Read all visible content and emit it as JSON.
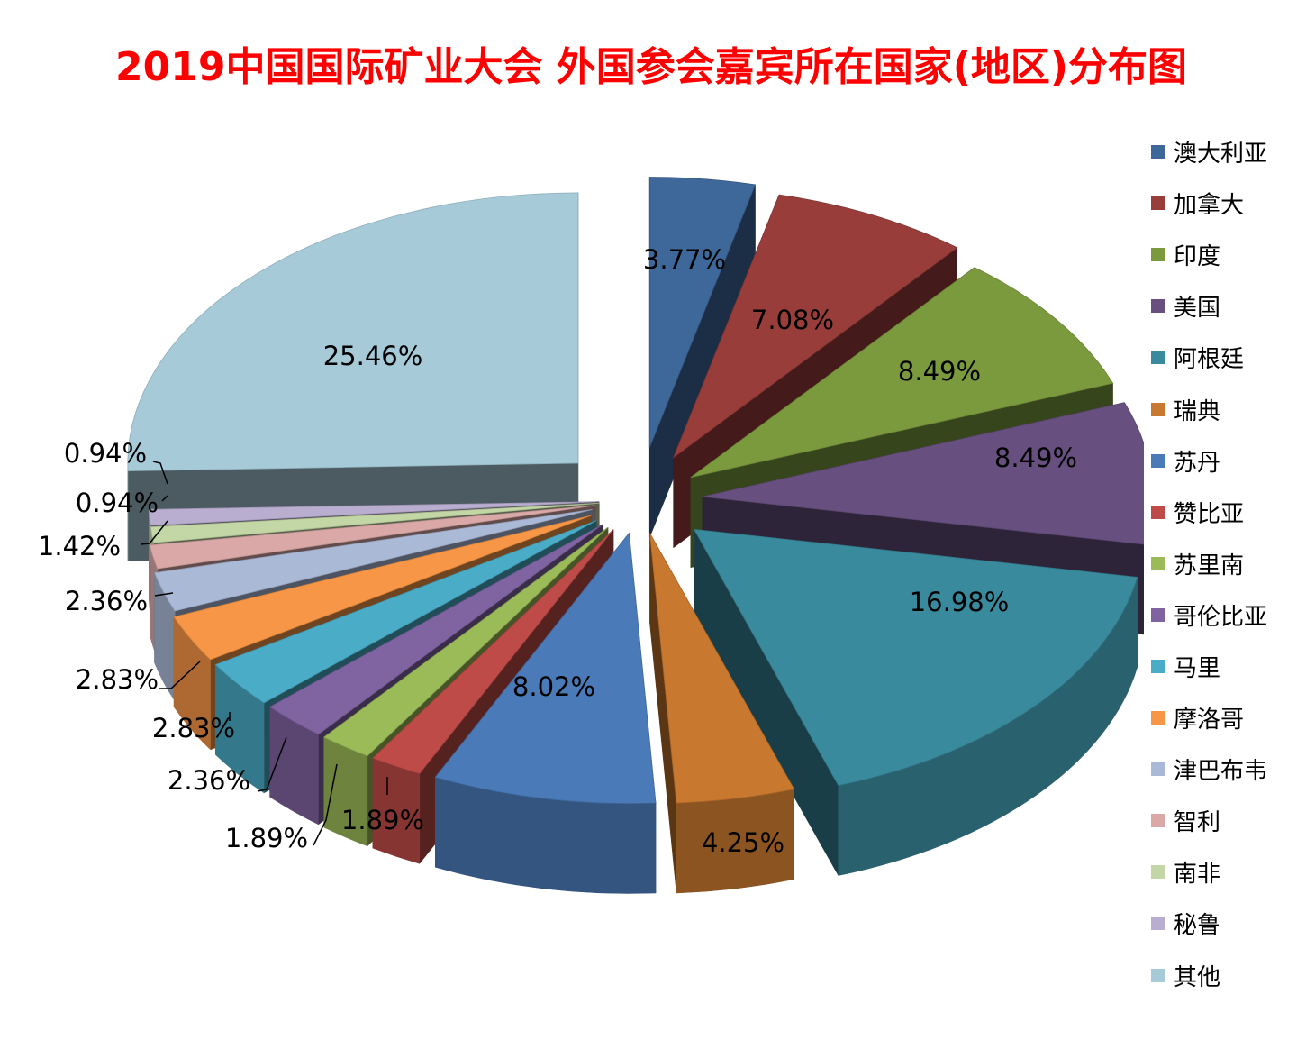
{
  "chart_data": {
    "type": "pie",
    "title": "2019中国国际矿业大会 外国参会嘉宾所在国家(地区)分布图",
    "legend_position": "right",
    "exploded": true,
    "three_d": true,
    "slices": [
      {
        "name": "澳大利亚",
        "value": 3.77,
        "label": "3.77%",
        "color": "#3e679a"
      },
      {
        "name": "加拿大",
        "value": 7.08,
        "label": "7.08%",
        "color": "#983d3a"
      },
      {
        "name": "印度",
        "value": 8.49,
        "label": "8.49%",
        "color": "#7b9a3e"
      },
      {
        "name": "美国",
        "value": 8.49,
        "label": "8.49%",
        "color": "#67507f"
      },
      {
        "name": "阿根廷",
        "value": 16.98,
        "label": "16.98%",
        "color": "#3a8a9e"
      },
      {
        "name": "瑞典",
        "value": 4.25,
        "label": "4.25%",
        "color": "#c8782f"
      },
      {
        "name": "苏丹",
        "value": 8.02,
        "label": "8.02%",
        "color": "#4a7ab7"
      },
      {
        "name": "赞比亚",
        "value": 1.89,
        "label": "1.89%",
        "color": "#bf4b48"
      },
      {
        "name": "苏里南",
        "value": 1.89,
        "label": "1.89%",
        "color": "#9bbb59"
      },
      {
        "name": "哥伦比亚",
        "value": 2.36,
        "label": "2.36%",
        "color": "#8064a2"
      },
      {
        "name": "马里",
        "value": 2.83,
        "label": "2.83%",
        "color": "#4aacc6"
      },
      {
        "name": "摩洛哥",
        "value": 2.83,
        "label": "2.83%",
        "color": "#f79646"
      },
      {
        "name": "津巴布韦",
        "value": 2.36,
        "label": "2.36%",
        "color": "#aab9d6"
      },
      {
        "name": "智利",
        "value": 1.42,
        "label": "1.42%",
        "color": "#d9a8a7"
      },
      {
        "name": "南非",
        "value": 0.94,
        "label": "0.94%",
        "color": "#c3d6a6"
      },
      {
        "name": "秘鲁",
        "value": 0.94,
        "label": "0.94%",
        "color": "#b9add0"
      },
      {
        "name": "其他",
        "value": 25.46,
        "label": "25.46%",
        "color": "#a6cad8"
      }
    ]
  }
}
